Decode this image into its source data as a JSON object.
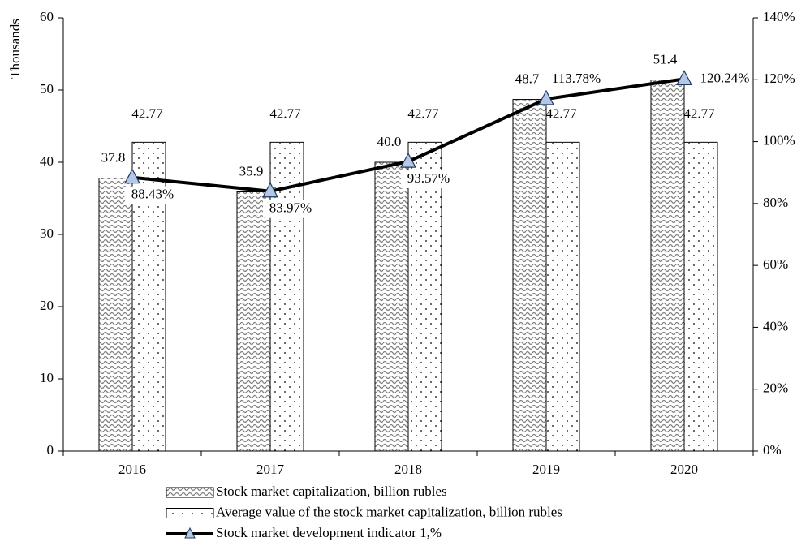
{
  "chart_data": {
    "type": "bar",
    "categories": [
      "2016",
      "2017",
      "2018",
      "2019",
      "2020"
    ],
    "ylabel": "Thousands",
    "ylim": [
      0,
      60
    ],
    "yticks": [
      0,
      10,
      20,
      30,
      40,
      50,
      60
    ],
    "y2lim": [
      0,
      140
    ],
    "y2ticks": [
      {
        "value": 0,
        "label": "0%"
      },
      {
        "value": 20,
        "label": "20%"
      },
      {
        "value": 40,
        "label": "40%"
      },
      {
        "value": 60,
        "label": "60%"
      },
      {
        "value": 80,
        "label": "80%"
      },
      {
        "value": 100,
        "label": "100%"
      },
      {
        "value": 120,
        "label": "120%"
      },
      {
        "value": 140,
        "label": "140%"
      }
    ],
    "legend": "bottom",
    "series": [
      {
        "name": "Stock market capitalization, billion rubles",
        "type": "bar",
        "pattern": "wave",
        "color": "#7f7f7f",
        "values": [
          37.8,
          35.9,
          40.0,
          48.7,
          51.4
        ],
        "value_labels": [
          "37.8",
          "35.9",
          "40.0",
          "48.7",
          "51.4"
        ]
      },
      {
        "name": "Average value of the stock market capitalization, billion rubles",
        "type": "bar",
        "pattern": "dots",
        "color": "#000000",
        "values": [
          42.77,
          42.77,
          42.77,
          42.77,
          42.77
        ]
      },
      {
        "name": "Stock market development indicator 1,%",
        "type": "line",
        "axis": "y2",
        "color": "#000000",
        "marker_color": "#b4c7e7",
        "values": [
          88.43,
          83.97,
          93.57,
          113.78,
          120.24
        ],
        "value_labels": [
          "88.43%",
          "83.97%",
          "93.57%",
          "113.78%",
          "120.24%"
        ]
      }
    ]
  }
}
